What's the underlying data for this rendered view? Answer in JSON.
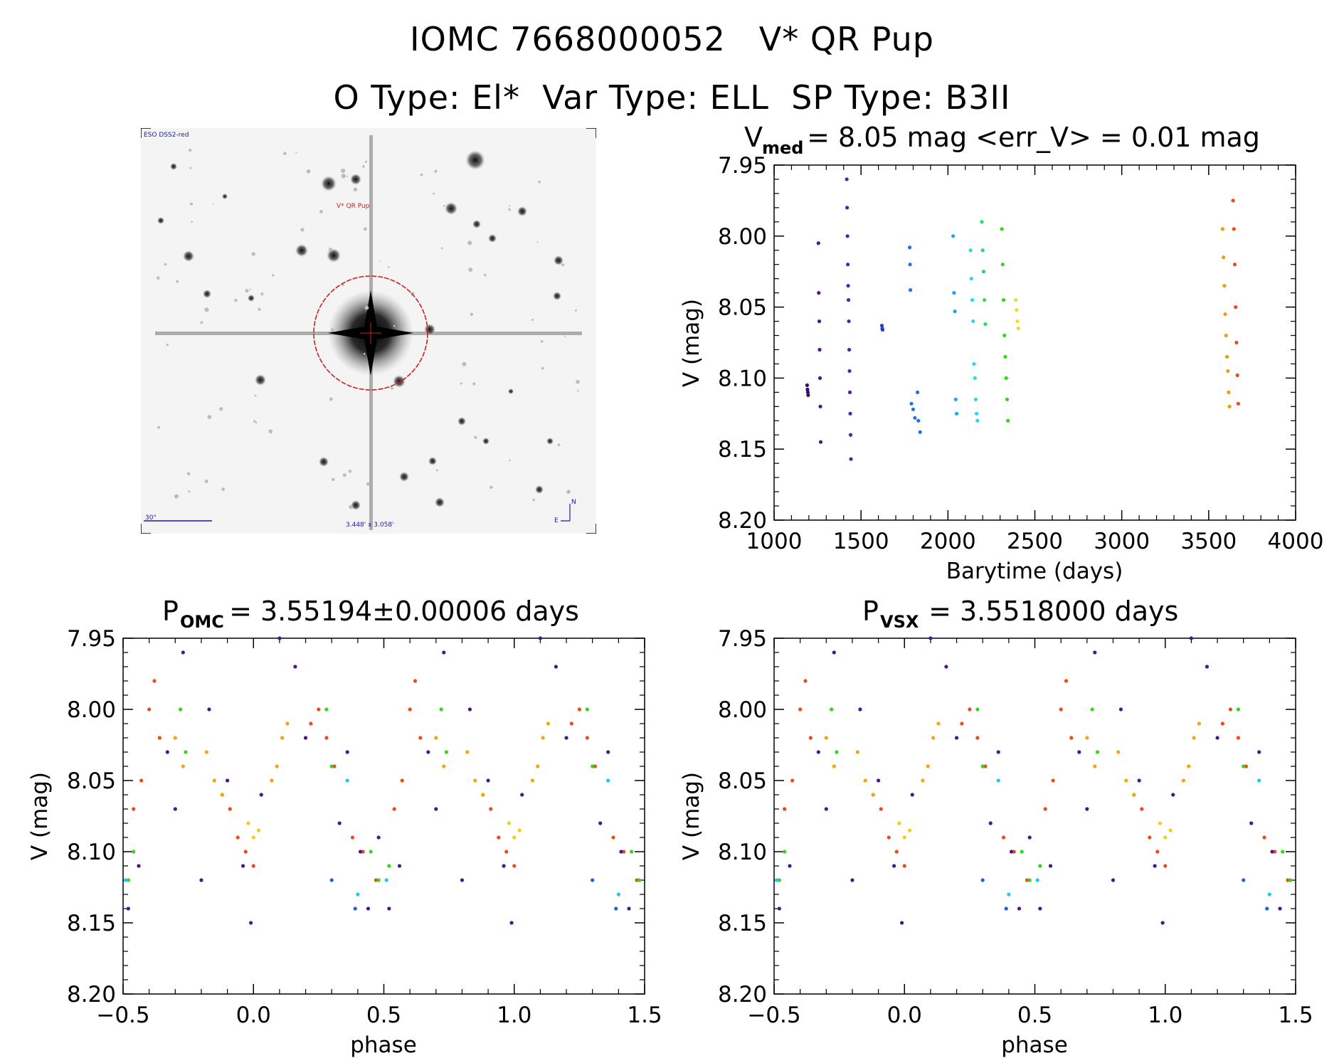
{
  "header": {
    "line1": "IOMC 7668000052   V* QR Pup",
    "line2": "O Type: El*  Var Type: ELL  SP Type: B3II"
  },
  "finder": {
    "survey_label": "ESO DSS2-red",
    "target_label": "V* QR Pup",
    "scale_label": "30\"",
    "fov_label": "3.448' x 3.058'",
    "north_label": "N",
    "east_label": "E",
    "colors": {
      "circle": "#cc2222",
      "labels": "#1a1aa8",
      "target_label": "#cc2222"
    }
  },
  "panels": {
    "lightcurve": {
      "title_pre": "V",
      "title_sub": "med",
      "title_post": " = 8.05 mag <err_V> = 0.01 mag",
      "xlabel": "Barytime (days)",
      "ylabel": "V (mag)"
    },
    "phase_omc": {
      "title_pre": "P",
      "title_sub": "OMC",
      "title_post": " = 3.55194±0.00006 days",
      "xlabel": "phase",
      "ylabel": "V (mag)"
    },
    "phase_vsx": {
      "title_pre": "P",
      "title_sub": "VSX",
      "title_post": " = 3.5518000 days",
      "xlabel": "phase",
      "ylabel": "V (mag)"
    }
  },
  "chart_data": [
    {
      "type": "scatter",
      "title": "Vmed = 8.05 mag <err_V> = 0.01 mag",
      "xlabel": "Barytime (days)",
      "ylabel": "V (mag)",
      "xlim": [
        1000,
        4000
      ],
      "ylim": [
        8.2,
        7.95
      ],
      "y_inverted": true,
      "xticks": [
        1000,
        1500,
        2000,
        2500,
        3000,
        3500,
        4000
      ],
      "yticks": [
        "7.95",
        "8.00",
        "8.05",
        "8.10",
        "8.15",
        "8.20"
      ],
      "series": [
        {
          "color": "#3a0a7a",
          "x": [
            1190,
            1192,
            1194,
            1196
          ],
          "y": [
            8.105,
            8.108,
            8.11,
            8.112
          ]
        },
        {
          "color": "#4b1590",
          "x": [
            1255,
            1257,
            1260,
            1262,
            1264,
            1266,
            1268
          ],
          "y": [
            8.005,
            8.04,
            8.06,
            8.08,
            8.1,
            8.12,
            8.145
          ]
        },
        {
          "color": "#5a1ea8",
          "x": [
            1418,
            1420,
            1422,
            1424,
            1426,
            1428,
            1430,
            1432,
            1434,
            1436,
            1438,
            1440,
            1442
          ],
          "y": [
            7.96,
            7.98,
            8.0,
            8.02,
            8.035,
            8.045,
            8.06,
            8.08,
            8.095,
            8.11,
            8.125,
            8.14,
            8.157
          ]
        },
        {
          "color": "#2a3ad0",
          "x": [
            1620,
            1622,
            1624
          ],
          "y": [
            8.063,
            8.065,
            8.066
          ]
        },
        {
          "color": "#1f72e8",
          "x": [
            1780,
            1782,
            1784,
            1790,
            1800,
            1810,
            1825,
            1830,
            1840
          ],
          "y": [
            8.008,
            8.02,
            8.038,
            8.118,
            8.122,
            8.128,
            8.11,
            8.13,
            8.138
          ]
        },
        {
          "color": "#18a8ee",
          "x": [
            2030,
            2035,
            2040,
            2045,
            2050
          ],
          "y": [
            8.0,
            8.04,
            8.053,
            8.115,
            8.125
          ]
        },
        {
          "color": "#20dced",
          "x": [
            2130,
            2135,
            2140,
            2145,
            2150,
            2155,
            2160,
            2165,
            2170
          ],
          "y": [
            8.01,
            8.03,
            8.045,
            8.06,
            8.09,
            8.1,
            8.115,
            8.125,
            8.13
          ]
        },
        {
          "color": "#22e060",
          "x": [
            2195,
            2200,
            2205,
            2210,
            2215
          ],
          "y": [
            7.99,
            8.01,
            8.025,
            8.045,
            8.062
          ]
        },
        {
          "color": "#30d818",
          "x": [
            2310,
            2315,
            2320,
            2325,
            2330,
            2335,
            2340,
            2345
          ],
          "y": [
            7.995,
            8.02,
            8.045,
            8.07,
            8.085,
            8.1,
            8.115,
            8.13
          ]
        },
        {
          "color": "#f0e010",
          "x": [
            2390,
            2395,
            2400,
            2405
          ],
          "y": [
            8.045,
            8.052,
            8.06,
            8.065
          ]
        },
        {
          "color": "#f59a0a",
          "x": [
            3580,
            3585,
            3590,
            3595,
            3600,
            3605,
            3610,
            3615,
            3620
          ],
          "y": [
            7.995,
            8.015,
            8.035,
            8.055,
            8.07,
            8.085,
            8.095,
            8.11,
            8.12
          ]
        },
        {
          "color": "#ee4a18",
          "x": [
            3640,
            3645,
            3650,
            3655,
            3660,
            3665,
            3670
          ],
          "y": [
            7.975,
            7.995,
            8.02,
            8.05,
            8.075,
            8.098,
            8.118
          ]
        }
      ]
    },
    {
      "type": "scatter",
      "title": "POMC = 3.55194±0.00006 days",
      "xlabel": "phase",
      "ylabel": "V (mag)",
      "xlim": [
        -0.5,
        1.5
      ],
      "ylim": [
        8.2,
        7.95
      ],
      "y_inverted": true,
      "xticks": [
        "−0.5",
        "0.0",
        "0.5",
        "1.0",
        "1.5"
      ],
      "yticks": [
        "7.95",
        "8.00",
        "8.05",
        "8.10",
        "8.15",
        "8.20"
      ],
      "series": [
        {
          "color": "#ee4a18",
          "x": [
            -0.46,
            -0.43,
            -0.4,
            -0.38,
            -0.36,
            -0.12,
            -0.09,
            -0.06,
            -0.03,
            0.0,
            0.22,
            0.25,
            0.28,
            0.31,
            0.38,
            0.42,
            0.47,
            0.54,
            0.57,
            0.6,
            0.62,
            0.64,
            0.88,
            0.91,
            0.94,
            0.97,
            1.0,
            1.22,
            1.25,
            1.28,
            1.31,
            1.38,
            1.42,
            1.47
          ],
          "y": [
            8.07,
            8.05,
            8.0,
            7.98,
            8.02,
            8.06,
            8.07,
            8.09,
            8.1,
            8.11,
            8.01,
            8.0,
            8.02,
            8.04,
            8.09,
            8.1,
            8.12,
            8.07,
            8.05,
            8.0,
            7.98,
            8.02,
            8.06,
            8.07,
            8.09,
            8.1,
            8.11,
            8.01,
            8.0,
            8.02,
            8.04,
            8.09,
            8.1,
            8.12
          ]
        },
        {
          "color": "#f5a510",
          "x": [
            -0.3,
            -0.27,
            -0.18,
            -0.15,
            -0.12,
            0.07,
            0.09,
            0.11,
            0.13,
            0.7,
            0.73,
            0.82,
            0.85,
            0.88,
            1.07,
            1.09,
            1.11,
            1.13
          ],
          "y": [
            8.02,
            8.04,
            8.03,
            8.05,
            8.06,
            8.05,
            8.04,
            8.02,
            8.01,
            8.02,
            8.04,
            8.03,
            8.05,
            8.06,
            8.05,
            8.04,
            8.02,
            8.01
          ]
        },
        {
          "color": "#f0d010",
          "x": [
            -0.02,
            0.0,
            0.02,
            0.98,
            1.0,
            1.02
          ],
          "y": [
            8.08,
            8.09,
            8.085,
            8.08,
            8.09,
            8.085
          ]
        },
        {
          "color": "#30d818",
          "x": [
            -0.48,
            -0.46,
            -0.28,
            -0.26,
            0.28,
            0.3,
            0.45,
            0.48,
            0.52,
            0.72,
            0.74,
            1.28,
            1.3,
            1.45,
            1.48
          ],
          "y": [
            8.12,
            8.1,
            8.0,
            8.03,
            8.0,
            8.04,
            8.1,
            8.12,
            8.11,
            8.0,
            8.03,
            8.0,
            8.04,
            8.1,
            8.12
          ]
        },
        {
          "color": "#20c8ee",
          "x": [
            -0.49,
            0.36,
            0.4,
            0.51,
            1.36,
            1.4
          ],
          "y": [
            8.12,
            8.05,
            8.13,
            8.12,
            8.05,
            8.13
          ]
        },
        {
          "color": "#1f5ee8",
          "x": [
            0.3,
            0.39,
            1.3,
            1.39
          ],
          "y": [
            8.12,
            8.14,
            8.12,
            8.14
          ]
        },
        {
          "color": "#4b1590",
          "x": [
            -0.48,
            -0.44,
            -0.33,
            -0.3,
            -0.27,
            -0.2,
            -0.17,
            -0.1,
            -0.04,
            -0.01,
            0.03,
            0.1,
            0.16,
            0.2,
            0.33,
            0.36,
            0.41,
            0.44,
            0.48,
            0.52,
            0.56,
            0.67,
            0.7,
            0.73,
            0.8,
            0.83,
            0.9,
            0.96,
            0.99,
            1.03,
            1.1,
            1.16,
            1.2,
            1.33,
            1.36,
            1.41,
            1.44
          ],
          "y": [
            8.14,
            8.11,
            8.03,
            8.07,
            7.96,
            8.12,
            8.0,
            8.05,
            8.11,
            8.15,
            8.06,
            7.95,
            7.97,
            8.02,
            8.08,
            8.03,
            8.1,
            8.14,
            8.09,
            8.14,
            8.11,
            8.03,
            8.07,
            7.96,
            8.12,
            8.0,
            8.05,
            8.11,
            8.15,
            8.06,
            7.95,
            7.97,
            8.02,
            8.08,
            8.03,
            8.1,
            8.14
          ]
        }
      ]
    },
    {
      "type": "scatter",
      "title": "PVSX = 3.5518000 days",
      "xlabel": "phase",
      "ylabel": "V (mag)",
      "xlim": [
        -0.5,
        1.5
      ],
      "ylim": [
        8.2,
        7.95
      ],
      "y_inverted": true,
      "xticks": [
        "−0.5",
        "0.0",
        "0.5",
        "1.0",
        "1.5"
      ],
      "yticks": [
        "7.95",
        "8.00",
        "8.05",
        "8.10",
        "8.15",
        "8.20"
      ],
      "series": [
        {
          "color": "#ee4a18",
          "x": [
            -0.46,
            -0.43,
            -0.4,
            -0.38,
            -0.36,
            -0.12,
            -0.09,
            -0.06,
            -0.03,
            0.0,
            0.22,
            0.25,
            0.28,
            0.31,
            0.38,
            0.42,
            0.47,
            0.54,
            0.57,
            0.6,
            0.62,
            0.64,
            0.88,
            0.91,
            0.94,
            0.97,
            1.0,
            1.22,
            1.25,
            1.28,
            1.31,
            1.38,
            1.42,
            1.47
          ],
          "y": [
            8.07,
            8.05,
            8.0,
            7.98,
            8.02,
            8.06,
            8.07,
            8.09,
            8.1,
            8.11,
            8.01,
            8.0,
            8.02,
            8.04,
            8.09,
            8.1,
            8.12,
            8.07,
            8.05,
            8.0,
            7.98,
            8.02,
            8.06,
            8.07,
            8.09,
            8.1,
            8.11,
            8.01,
            8.0,
            8.02,
            8.04,
            8.09,
            8.1,
            8.12
          ]
        },
        {
          "color": "#f5a510",
          "x": [
            -0.3,
            -0.27,
            -0.18,
            -0.15,
            -0.12,
            0.07,
            0.09,
            0.11,
            0.13,
            0.7,
            0.73,
            0.82,
            0.85,
            0.88,
            1.07,
            1.09,
            1.11,
            1.13
          ],
          "y": [
            8.02,
            8.04,
            8.03,
            8.05,
            8.06,
            8.05,
            8.04,
            8.02,
            8.01,
            8.02,
            8.04,
            8.03,
            8.05,
            8.06,
            8.05,
            8.04,
            8.02,
            8.01
          ]
        },
        {
          "color": "#f0d010",
          "x": [
            -0.02,
            0.0,
            0.02,
            0.98,
            1.0,
            1.02
          ],
          "y": [
            8.08,
            8.09,
            8.085,
            8.08,
            8.09,
            8.085
          ]
        },
        {
          "color": "#30d818",
          "x": [
            -0.48,
            -0.46,
            -0.28,
            -0.26,
            0.28,
            0.3,
            0.45,
            0.48,
            0.52,
            0.72,
            0.74,
            1.28,
            1.3,
            1.45,
            1.48
          ],
          "y": [
            8.12,
            8.1,
            8.0,
            8.03,
            8.0,
            8.04,
            8.1,
            8.12,
            8.11,
            8.0,
            8.03,
            8.0,
            8.04,
            8.1,
            8.12
          ]
        },
        {
          "color": "#20c8ee",
          "x": [
            -0.49,
            0.36,
            0.4,
            0.51,
            1.36,
            1.4
          ],
          "y": [
            8.12,
            8.05,
            8.13,
            8.12,
            8.05,
            8.13
          ]
        },
        {
          "color": "#1f5ee8",
          "x": [
            0.3,
            0.39,
            1.3,
            1.39
          ],
          "y": [
            8.12,
            8.14,
            8.12,
            8.14
          ]
        },
        {
          "color": "#4b1590",
          "x": [
            -0.48,
            -0.44,
            -0.33,
            -0.3,
            -0.27,
            -0.2,
            -0.17,
            -0.1,
            -0.04,
            -0.01,
            0.03,
            0.1,
            0.16,
            0.2,
            0.33,
            0.36,
            0.41,
            0.44,
            0.48,
            0.52,
            0.56,
            0.67,
            0.7,
            0.73,
            0.8,
            0.83,
            0.9,
            0.96,
            0.99,
            1.03,
            1.1,
            1.16,
            1.2,
            1.33,
            1.36,
            1.41,
            1.44
          ],
          "y": [
            8.14,
            8.11,
            8.03,
            8.07,
            7.96,
            8.12,
            8.0,
            8.05,
            8.11,
            8.15,
            8.06,
            7.95,
            7.97,
            8.02,
            8.08,
            8.03,
            8.1,
            8.14,
            8.09,
            8.14,
            8.11,
            8.03,
            8.07,
            7.96,
            8.12,
            8.0,
            8.05,
            8.11,
            8.15,
            8.06,
            7.95,
            7.97,
            8.02,
            8.08,
            8.03,
            8.1,
            8.14
          ]
        }
      ]
    }
  ]
}
